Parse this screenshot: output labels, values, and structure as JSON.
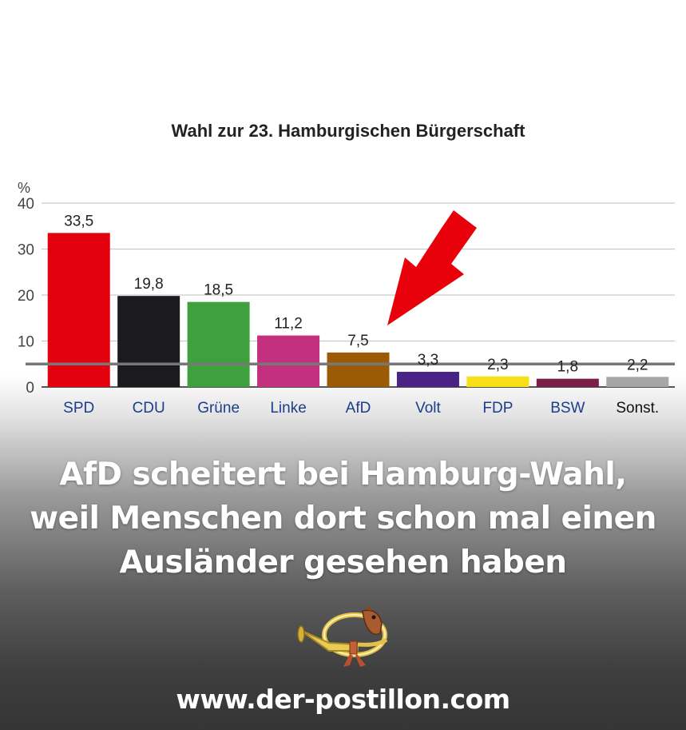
{
  "chart_data": {
    "type": "bar",
    "title": "Wahl zur 23. Hamburgischen Bürgerschaft",
    "ylabel": "%",
    "ylim": [
      0,
      40
    ],
    "yticks": [
      0,
      10,
      20,
      30,
      40
    ],
    "threshold": 5,
    "grid": true,
    "categories": [
      "SPD",
      "CDU",
      "Grüne",
      "Linke",
      "AfD",
      "Volt",
      "FDP",
      "BSW",
      "Sonst."
    ],
    "values": [
      33.5,
      19.8,
      18.5,
      11.2,
      7.5,
      3.3,
      2.3,
      1.8,
      2.2
    ],
    "value_labels": [
      "33,5",
      "19,8",
      "18,5",
      "11,2",
      "7,5",
      "3,3",
      "2,3",
      "1,8",
      "2,2"
    ],
    "colors": [
      "#e3000f",
      "#1b1b1f",
      "#3fa03e",
      "#c2307f",
      "#9b5a05",
      "#4b2387",
      "#f5e01a",
      "#7a1f4a",
      "#a6a6a6"
    ],
    "label_colors": [
      "#1c3c8c",
      "#1c3c8c",
      "#1c3c8c",
      "#1c3c8c",
      "#1c3c8c",
      "#1c3c8c",
      "#1c3c8c",
      "#1c3c8c",
      "#111111"
    ],
    "annotation": {
      "type": "arrow",
      "points_to": "AfD",
      "color": "#e8000b"
    }
  },
  "headline": [
    "AfD scheitert bei Hamburg-Wahl,",
    "weil Menschen dort schon mal einen",
    "Ausländer gesehen haben"
  ],
  "logo": {
    "icon": "posthorn-logo-icon"
  },
  "website": "www.der-postillon.com"
}
